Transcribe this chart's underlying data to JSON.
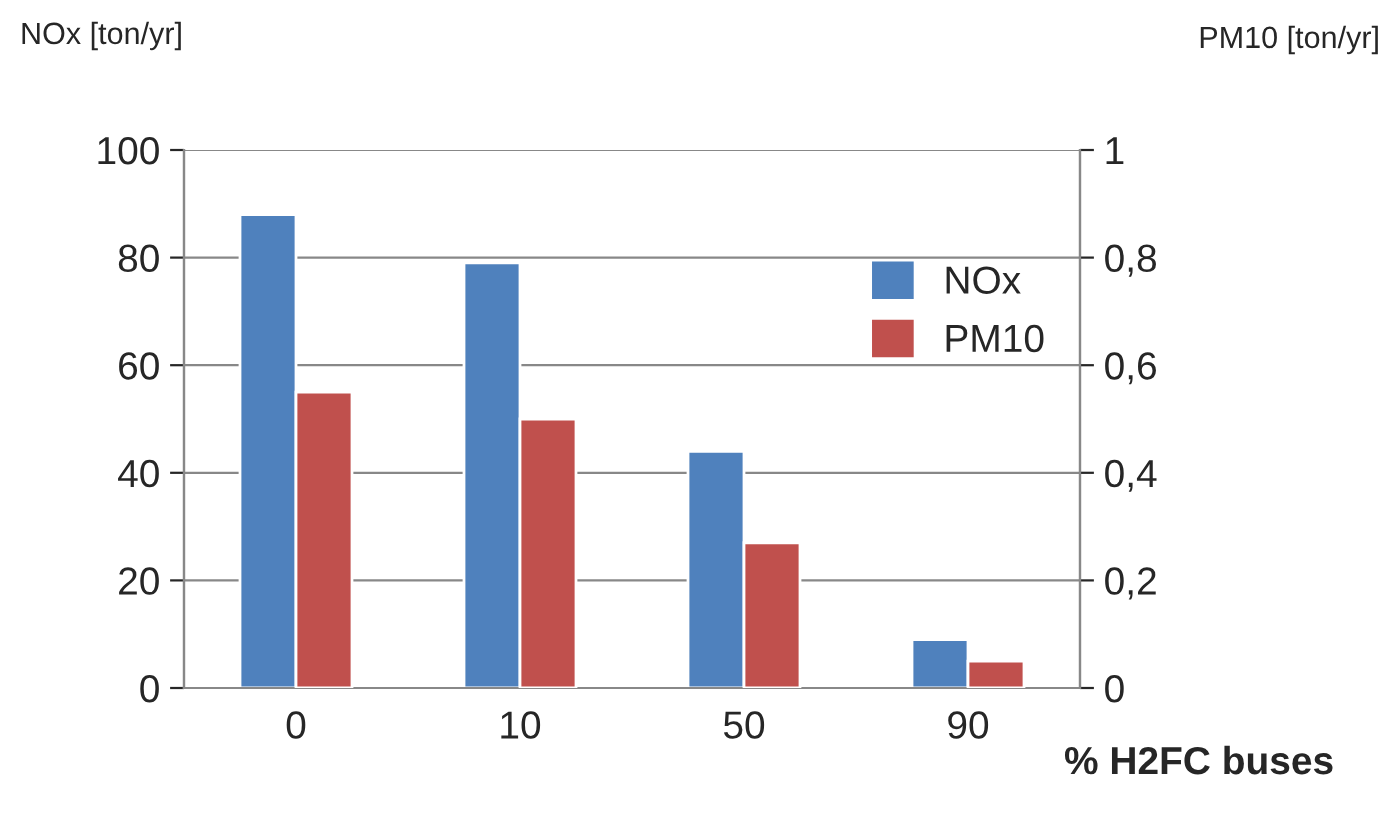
{
  "chart_data": {
    "type": "bar",
    "categories": [
      "0",
      "10",
      "50",
      "90"
    ],
    "series": [
      {
        "name": "NOx",
        "color": "#4f81bd",
        "values": [
          88,
          79,
          44,
          9
        ]
      },
      {
        "name": "PM10",
        "color": "#c0504d",
        "values": [
          0.55,
          0.5,
          0.27,
          0.05
        ],
        "axis": "y2"
      }
    ],
    "xlabel": "% H2FC buses",
    "ylabel": "NOx [ton/yr]",
    "y2label": "PM10 [ton/yr]",
    "ylim": [
      0,
      100
    ],
    "yticks": [
      0,
      20,
      40,
      60,
      80,
      100
    ],
    "y2lim": [
      0,
      1
    ],
    "y2ticks": [
      0,
      {
        "value": 0.2,
        "label": "0,2"
      },
      {
        "value": 0.4,
        "label": "0,4"
      },
      {
        "value": 0.6,
        "label": "0,6"
      },
      {
        "value": 0.8,
        "label": "0,8"
      },
      1
    ],
    "grid": "y",
    "legend": "right"
  }
}
